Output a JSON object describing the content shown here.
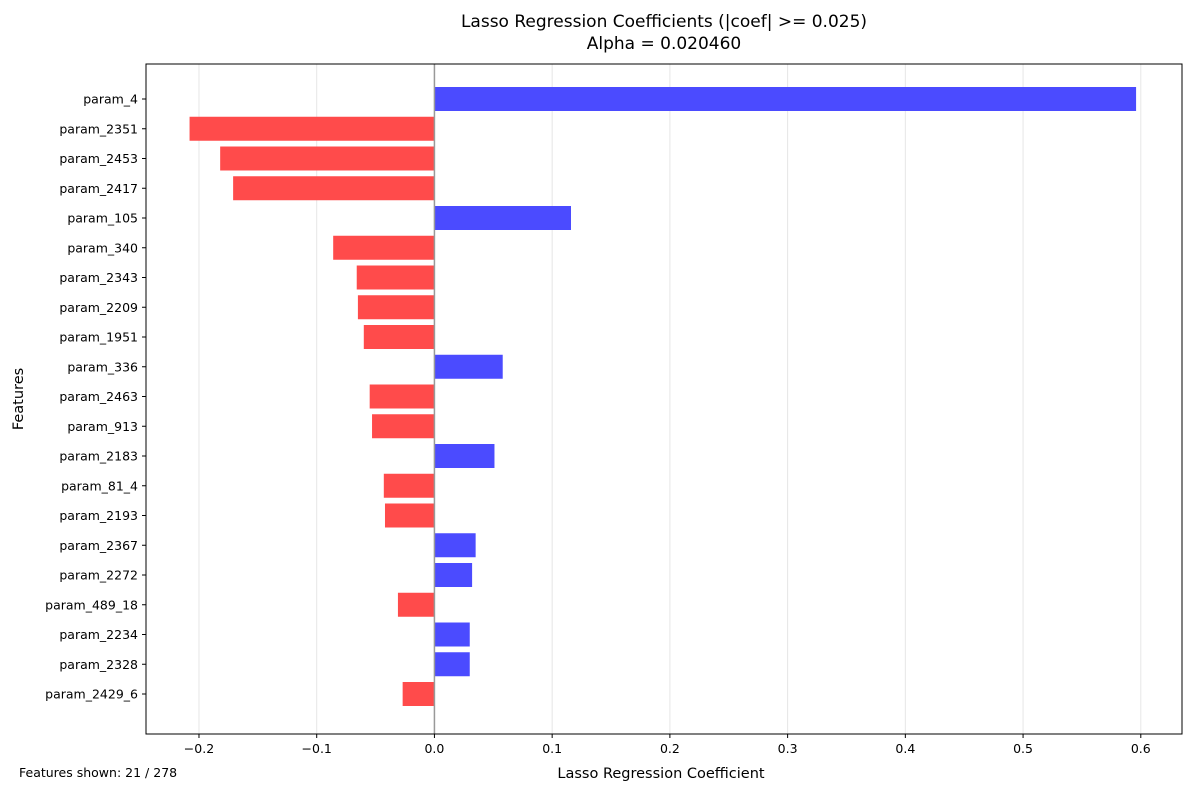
{
  "chart_data": {
    "type": "bar",
    "orientation": "horizontal",
    "title": "Lasso Regression Coefficients (|coef| >= 0.025)",
    "subtitle": "Alpha = 0.020460",
    "xlabel": "Lasso Regression Coefficient",
    "ylabel": "Features",
    "xlim": [
      -0.245,
      0.635
    ],
    "xticks": [
      -0.2,
      -0.1,
      0.0,
      0.1,
      0.2,
      0.3,
      0.4,
      0.5,
      0.6
    ],
    "xtick_labels": [
      "−0.2",
      "−0.1",
      "0.0",
      "0.1",
      "0.2",
      "0.3",
      "0.4",
      "0.5",
      "0.6"
    ],
    "grid": "x",
    "colors": {
      "positive": "#4b4bff",
      "negative": "#ff4b4b",
      "zero_line": "#999999",
      "grid": "#e6e6e6"
    },
    "categories": [
      "param_4",
      "param_2351",
      "param_2453",
      "param_2417",
      "param_105",
      "param_340",
      "param_2343",
      "param_2209",
      "param_1951",
      "param_336",
      "param_2463",
      "param_913",
      "param_2183",
      "param_81_4",
      "param_2193",
      "param_2367",
      "param_2272",
      "param_489_18",
      "param_2234",
      "param_2328",
      "param_2429_6"
    ],
    "values": [
      0.596,
      -0.208,
      -0.182,
      -0.171,
      0.116,
      -0.086,
      -0.066,
      -0.065,
      -0.06,
      0.058,
      -0.055,
      -0.053,
      0.051,
      -0.043,
      -0.042,
      0.035,
      0.032,
      -0.031,
      0.03,
      0.03,
      -0.027
    ]
  },
  "footnote": {
    "label": "Features shown:",
    "shown": "21",
    "separator": "/",
    "total": "278"
  }
}
